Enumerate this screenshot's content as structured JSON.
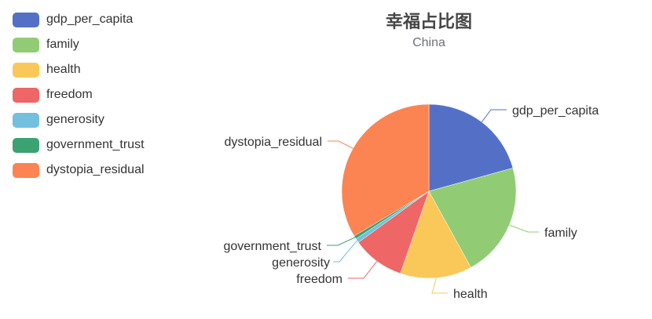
{
  "chart_data": {
    "type": "pie",
    "title": "幸福占比图",
    "subtitle": "China",
    "legend_position": "top-left",
    "slices": [
      {
        "name": "gdp_per_capita",
        "value": 0.207,
        "color": "#5470c6"
      },
      {
        "name": "family",
        "value": 0.213,
        "color": "#91cc75"
      },
      {
        "name": "health",
        "value": 0.133,
        "color": "#fac858"
      },
      {
        "name": "freedom",
        "value": 0.097,
        "color": "#ee6666"
      },
      {
        "name": "generosity",
        "value": 0.008,
        "color": "#73c0de"
      },
      {
        "name": "government_trust",
        "value": 0.006,
        "color": "#3ba272"
      },
      {
        "name": "dystopia_residual",
        "value": 0.336,
        "color": "#fc8452"
      }
    ]
  }
}
